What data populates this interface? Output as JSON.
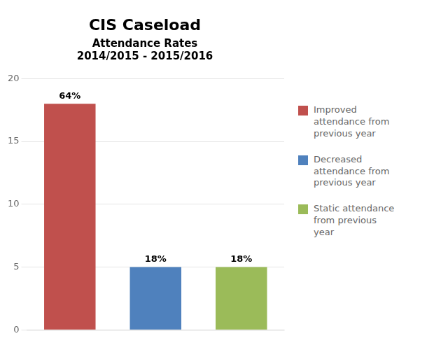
{
  "chart_data": {
    "type": "bar",
    "title": "CIS Caseload",
    "subtitle": [
      "Attendance Rates",
      "2014/2015 - 2015/2016"
    ],
    "categories": [
      "Improved\nattendance from\nprevious year",
      "Decreased\nattendance from\nprevious year",
      "Static attendance\nfrom previous\nyear"
    ],
    "values": [
      18,
      5,
      5
    ],
    "value_labels": [
      "64%",
      "18%",
      "18%"
    ],
    "colors": [
      "#c0504d",
      "#4f81bd",
      "#9bbb59"
    ],
    "ylim": [
      0,
      20
    ],
    "yticks": [
      0,
      5,
      10,
      15,
      20
    ],
    "grid": true,
    "data_labels": true,
    "tick_labels": "y",
    "legend": "right"
  }
}
